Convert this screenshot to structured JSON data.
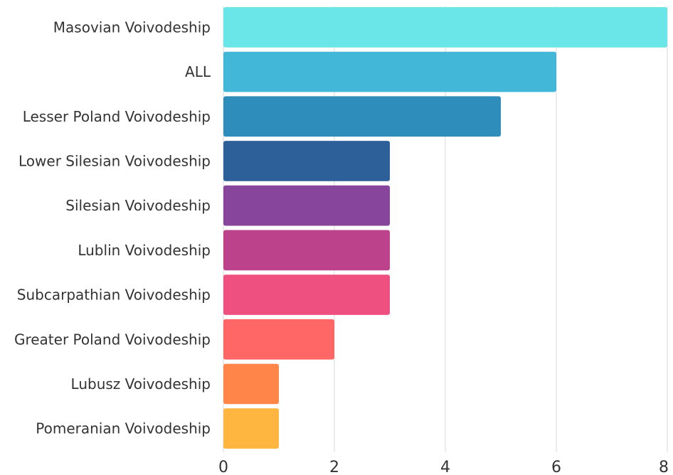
{
  "chart_data": {
    "type": "bar",
    "orientation": "horizontal",
    "title": "",
    "xlabel": "",
    "ylabel": "",
    "categories": [
      "Masovian Voivodeship",
      "ALL",
      "Lesser Poland Voivodeship",
      "Lower Silesian Voivodeship",
      "Silesian Voivodeship",
      "Lublin Voivodeship",
      "Subcarpathian Voivodeship",
      "Greater Poland Voivodeship",
      "Lubusz Voivodeship",
      "Pomeranian Voivodeship"
    ],
    "values": [
      8,
      6,
      5,
      3,
      3,
      3,
      3,
      2,
      1,
      1
    ],
    "colors": [
      "#6ae6e8",
      "#42b7d8",
      "#2f8dbb",
      "#2d5f99",
      "#87469c",
      "#bb428b",
      "#ee5080",
      "#ff6666",
      "#ff8549",
      "#ffb641"
    ],
    "xlim": [
      0,
      8
    ],
    "xticks": [
      0,
      2,
      4,
      6,
      8
    ],
    "grid": true,
    "legend": "none"
  }
}
